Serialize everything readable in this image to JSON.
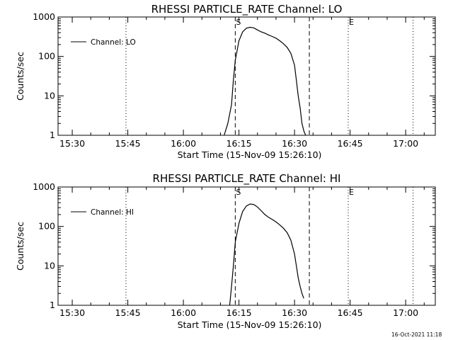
{
  "chart_data": [
    {
      "type": "line",
      "title": "RHESSI PARTICLE_RATE Channel: LO",
      "xlabel": "Start Time (15-Nov-09 15:26:10)",
      "ylabel": "Counts/sec",
      "yscale": "log",
      "ylim": [
        1,
        1000
      ],
      "yticks": [
        "1",
        "10",
        "100",
        "1000"
      ],
      "xlim": [
        "15:26:10",
        "17:08:00"
      ],
      "xticks": [
        "15:30",
        "15:45",
        "16:00",
        "16:15",
        "16:30",
        "16:45",
        "17:00"
      ],
      "legend": {
        "position": "top-left",
        "entries": [
          "Channel: LO"
        ]
      },
      "series": [
        {
          "name": "Channel: LO",
          "x": [
            "16:11:00",
            "16:12:00",
            "16:13:00",
            "16:13:30",
            "16:14:00",
            "16:15:00",
            "16:16:00",
            "16:17:00",
            "16:18:00",
            "16:19:00",
            "16:20:00",
            "16:21:00",
            "16:22:00",
            "16:23:00",
            "16:24:00",
            "16:25:00",
            "16:26:00",
            "16:27:00",
            "16:28:00",
            "16:29:00",
            "16:30:00",
            "16:30:30",
            "16:31:00",
            "16:31:30",
            "16:32:00",
            "16:32:30",
            "16:33:00"
          ],
          "values": [
            1,
            2,
            6,
            25,
            80,
            250,
            420,
            520,
            550,
            530,
            470,
            420,
            390,
            350,
            320,
            290,
            250,
            210,
            170,
            120,
            60,
            25,
            10,
            5,
            2,
            1.3,
            1
          ]
        }
      ],
      "vertical_lines": [
        {
          "label": "S",
          "time": "16:14:00",
          "style": "dashed"
        },
        {
          "label": "",
          "time": "16:34:00",
          "style": "dashed"
        },
        {
          "label": "E",
          "time": "16:44:30",
          "style": "dotted"
        },
        {
          "label": "",
          "time": "15:44:30",
          "style": "dotted"
        },
        {
          "label": "",
          "time": "17:02:00",
          "style": "dotted"
        }
      ]
    },
    {
      "type": "line",
      "title": "RHESSI PARTICLE_RATE Channel: HI",
      "xlabel": "Start Time (15-Nov-09 15:26:10)",
      "ylabel": "Counts/sec",
      "yscale": "log",
      "ylim": [
        1,
        1000
      ],
      "yticks": [
        "1",
        "10",
        "100",
        "1000"
      ],
      "xlim": [
        "15:26:10",
        "17:08:00"
      ],
      "xticks": [
        "15:30",
        "15:45",
        "16:00",
        "16:15",
        "16:30",
        "16:45",
        "17:00"
      ],
      "legend": {
        "position": "top-left",
        "entries": [
          "Channel: HI"
        ]
      },
      "series": [
        {
          "name": "Channel: HI",
          "x": [
            "16:12:30",
            "16:13:00",
            "16:13:30",
            "16:14:00",
            "16:15:00",
            "16:16:00",
            "16:17:00",
            "16:18:00",
            "16:19:00",
            "16:20:00",
            "16:21:00",
            "16:22:00",
            "16:23:00",
            "16:24:00",
            "16:25:00",
            "16:26:00",
            "16:27:00",
            "16:28:00",
            "16:29:00",
            "16:30:00",
            "16:30:30",
            "16:31:00",
            "16:31:30",
            "16:32:00",
            "16:32:30"
          ],
          "values": [
            1,
            3,
            10,
            40,
            120,
            240,
            330,
            370,
            360,
            310,
            250,
            200,
            170,
            150,
            130,
            110,
            90,
            70,
            45,
            20,
            10,
            5,
            3,
            2,
            1.5
          ]
        }
      ],
      "vertical_lines": [
        {
          "label": "S",
          "time": "16:14:00",
          "style": "dashed"
        },
        {
          "label": "",
          "time": "16:34:00",
          "style": "dashed"
        },
        {
          "label": "E",
          "time": "16:44:30",
          "style": "dotted"
        },
        {
          "label": "",
          "time": "15:44:30",
          "style": "dotted"
        },
        {
          "label": "",
          "time": "17:02:00",
          "style": "dotted"
        }
      ]
    }
  ],
  "footer": {
    "timestamp": "16-Oct-2021 11:18"
  }
}
